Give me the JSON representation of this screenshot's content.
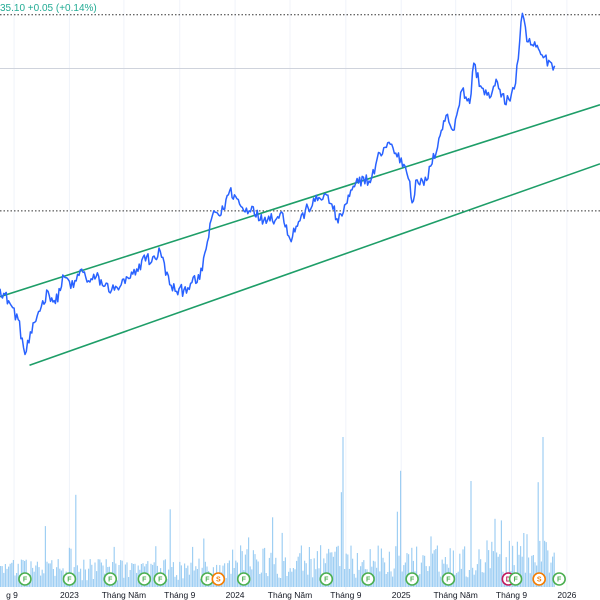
{
  "header": {
    "price_change": "35.10 +0.05 (+0.14%)",
    "quote_color": "#22ab94"
  },
  "colors": {
    "price_line": "#2962ff",
    "channel_line": "#1e9e68",
    "volume": "#7fbfef",
    "level_line": "#555555",
    "badge_f": "#4caf50",
    "badge_s": "#f57c00",
    "badge_d": "#c2185b"
  },
  "chart_data": {
    "type": "line",
    "x_axis_labels": [
      {
        "text": "g 9",
        "date": "2022-09-01"
      },
      {
        "text": "2023",
        "date": "2023-01-01"
      },
      {
        "text": "Tháng Năm",
        "date": "2023-05-01"
      },
      {
        "text": "Tháng 9",
        "date": "2023-09-01"
      },
      {
        "text": "2024",
        "date": "2024-01-01"
      },
      {
        "text": "Tháng Năm",
        "date": "2024-05-01"
      },
      {
        "text": "Tháng 9",
        "date": "2024-09-01"
      },
      {
        "text": "2025",
        "date": "2025-01-01"
      },
      {
        "text": "Tháng Năm",
        "date": "2025-05-01"
      },
      {
        "text": "Tháng 9",
        "date": "2025-09-01"
      },
      {
        "text": "2026",
        "date": "2026-01-01"
      }
    ],
    "x_range": [
      "2022-08-01",
      "2026-03-15"
    ],
    "y_range": [
      5,
      40
    ],
    "price_series": {
      "name": "",
      "points": [
        [
          "2022-08-01",
          18.5
        ],
        [
          "2022-08-20",
          17.6
        ],
        [
          "2022-09-10",
          16.2
        ],
        [
          "2022-09-25",
          13.6
        ],
        [
          "2022-10-10",
          15.2
        ],
        [
          "2022-10-25",
          16.8
        ],
        [
          "2022-11-15",
          18.3
        ],
        [
          "2022-12-01",
          17.4
        ],
        [
          "2022-12-20",
          19.4
        ],
        [
          "2023-01-10",
          18.6
        ],
        [
          "2023-01-25",
          19.9
        ],
        [
          "2023-02-15",
          19.0
        ],
        [
          "2023-03-01",
          19.4
        ],
        [
          "2023-03-20",
          18.7
        ],
        [
          "2023-04-10",
          18.4
        ],
        [
          "2023-04-25",
          18.8
        ],
        [
          "2023-05-15",
          19.3
        ],
        [
          "2023-06-01",
          19.8
        ],
        [
          "2023-06-15",
          21.0
        ],
        [
          "2023-07-01",
          20.5
        ],
        [
          "2023-07-20",
          21.3
        ],
        [
          "2023-08-10",
          18.8
        ],
        [
          "2023-08-25",
          18.3
        ],
        [
          "2023-09-10",
          18.4
        ],
        [
          "2023-09-25",
          18.9
        ],
        [
          "2023-10-15",
          19.2
        ],
        [
          "2023-11-01",
          22.0
        ],
        [
          "2023-11-15",
          24.3
        ],
        [
          "2023-12-01",
          24.0
        ],
        [
          "2023-12-20",
          25.8
        ],
        [
          "2024-01-05",
          25.2
        ],
        [
          "2024-01-20",
          24.3
        ],
        [
          "2024-02-10",
          24.6
        ],
        [
          "2024-02-25",
          23.6
        ],
        [
          "2024-03-15",
          23.9
        ],
        [
          "2024-04-01",
          23.7
        ],
        [
          "2024-04-15",
          24.1
        ],
        [
          "2024-05-01",
          22.2
        ],
        [
          "2024-05-20",
          23.5
        ],
        [
          "2024-06-10",
          24.5
        ],
        [
          "2024-06-25",
          25.0
        ],
        [
          "2024-07-15",
          25.5
        ],
        [
          "2024-08-01",
          24.8
        ],
        [
          "2024-08-15",
          23.4
        ],
        [
          "2024-09-01",
          24.8
        ],
        [
          "2024-09-20",
          26.1
        ],
        [
          "2024-10-10",
          26.8
        ],
        [
          "2024-10-25",
          26.4
        ],
        [
          "2024-11-15",
          28.6
        ],
        [
          "2024-12-05",
          29.4
        ],
        [
          "2024-12-20",
          28.6
        ],
        [
          "2025-01-10",
          27.6
        ],
        [
          "2025-01-20",
          26.5
        ],
        [
          "2025-01-25",
          24.9
        ],
        [
          "2025-02-05",
          26.6
        ],
        [
          "2025-02-20",
          26.2
        ],
        [
          "2025-03-10",
          27.8
        ],
        [
          "2025-03-25",
          29.7
        ],
        [
          "2025-04-10",
          31.4
        ],
        [
          "2025-04-25",
          30.3
        ],
        [
          "2025-05-15",
          33.3
        ],
        [
          "2025-06-01",
          32.3
        ],
        [
          "2025-06-10",
          35.3
        ],
        [
          "2025-06-25",
          33.6
        ],
        [
          "2025-07-15",
          32.7
        ],
        [
          "2025-08-01",
          33.9
        ],
        [
          "2025-08-20",
          32.2
        ],
        [
          "2025-09-10",
          33.8
        ],
        [
          "2025-09-25",
          39.0
        ],
        [
          "2025-10-05",
          36.9
        ],
        [
          "2025-10-25",
          36.5
        ],
        [
          "2025-11-10",
          35.7
        ],
        [
          "2025-11-25",
          35.4
        ],
        [
          "2025-12-05",
          35.1
        ]
      ]
    },
    "channel_lines": [
      {
        "start": [
          "2022-08-01",
          17.9
        ],
        "end": [
          "2026-03-15",
          32.2
        ]
      },
      {
        "start": [
          "2022-10-05",
          12.8
        ],
        "end": [
          "2026-03-15",
          27.8
        ]
      }
    ],
    "horizontal_levels": [
      {
        "value": 38.9,
        "style": "dotted"
      },
      {
        "value": 34.9,
        "style": "solid"
      },
      {
        "value": 24.3,
        "style": "dotted"
      }
    ],
    "events": [
      {
        "label": "F",
        "date": "2022-09-25"
      },
      {
        "label": "F",
        "date": "2023-01-01"
      },
      {
        "label": "F",
        "date": "2023-04-01"
      },
      {
        "label": "F",
        "date": "2023-06-15"
      },
      {
        "label": "F",
        "date": "2023-07-20"
      },
      {
        "label": "F",
        "date": "2023-11-01"
      },
      {
        "label": "S",
        "date": "2023-11-25"
      },
      {
        "label": "F",
        "date": "2024-01-20"
      },
      {
        "label": "F",
        "date": "2024-07-20"
      },
      {
        "label": "F",
        "date": "2024-10-20"
      },
      {
        "label": "F",
        "date": "2025-01-25"
      },
      {
        "label": "F",
        "date": "2025-04-15"
      },
      {
        "label": "D",
        "date": "2025-08-25"
      },
      {
        "label": "F",
        "date": "2025-09-10"
      },
      {
        "label": "S",
        "date": "2025-11-01"
      },
      {
        "label": "F",
        "date": "2025-12-15"
      }
    ]
  }
}
